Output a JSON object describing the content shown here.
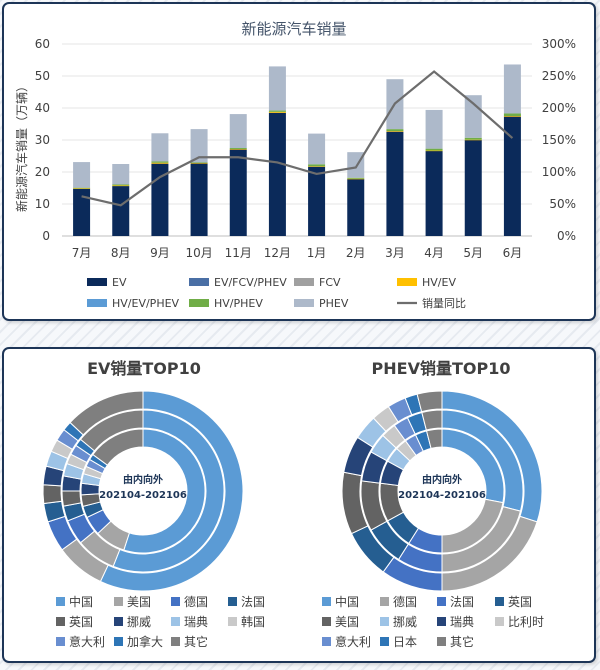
{
  "chart_data": [
    {
      "type": "bar",
      "title": "新能源汽车销量",
      "ylabel": "新能源汽车销量（万辆）",
      "ylim": [
        0,
        60
      ],
      "y2lim": [
        0,
        300
      ],
      "yticks": [
        "0",
        "10",
        "20",
        "30",
        "40",
        "50",
        "60"
      ],
      "y2ticks": [
        "0%",
        "50%",
        "100%",
        "150%",
        "200%",
        "250%",
        "300%"
      ],
      "categories": [
        "7月",
        "8月",
        "9月",
        "10月",
        "11月",
        "12月",
        "1月",
        "2月",
        "3月",
        "4月",
        "5月",
        "6月"
      ],
      "stacked": true,
      "series": [
        {
          "name": "EV",
          "color": "#0b2a5a",
          "values": [
            14.8,
            15.6,
            22.6,
            22.7,
            27.0,
            38.5,
            21.7,
            17.8,
            32.6,
            26.6,
            30.0,
            37.3
          ]
        },
        {
          "name": "EV/FCV/PHEV",
          "color": "#4a6fa5",
          "values": [
            0,
            0,
            0,
            0,
            0,
            0,
            0,
            0,
            0,
            0,
            0,
            0
          ]
        },
        {
          "name": "FCV",
          "color": "#a0a0a0",
          "values": [
            0,
            0,
            0,
            0,
            0,
            0,
            0,
            0,
            0,
            0,
            0,
            0
          ]
        },
        {
          "name": "HV/EV",
          "color": "#ffc000",
          "values": [
            0.1,
            0.2,
            0.3,
            0.1,
            0.2,
            0.3,
            0.1,
            0.1,
            0.2,
            0.1,
            0.1,
            0.2
          ]
        },
        {
          "name": "HV/EV/PHEV",
          "color": "#5b9bd5",
          "values": [
            0,
            0,
            0,
            0,
            0,
            0,
            0,
            0,
            0,
            0,
            0,
            0
          ]
        },
        {
          "name": "HV/PHEV",
          "color": "#70ad47",
          "values": [
            0.2,
            0.3,
            0.4,
            0.2,
            0.3,
            0.4,
            0.6,
            0.3,
            0.6,
            0.6,
            0.6,
            0.8
          ]
        },
        {
          "name": "PHEV",
          "color": "#adb9ca",
          "values": [
            8.0,
            6.4,
            8.8,
            10.4,
            10.6,
            13.8,
            9.6,
            8.0,
            15.6,
            12.1,
            13.3,
            15.3
          ]
        }
      ],
      "line": {
        "name": "销量同比",
        "color": "#6d6d6d",
        "axis": "right",
        "values": [
          62,
          48,
          92,
          123,
          123,
          115,
          97,
          107,
          207,
          257,
          207,
          153
        ]
      }
    },
    {
      "type": "pie",
      "title": "EV销量TOP10",
      "center_label": [
        "由内向外",
        "202104-202106"
      ],
      "rings": [
        {
          "period": "202104",
          "values": [
            55.0,
            8.0,
            5.0,
            3.0,
            3.0,
            3.0,
            2.5,
            2.0,
            2.0,
            1.5,
            15.0
          ]
        },
        {
          "period": "202105",
          "values": [
            56.0,
            8.0,
            5.0,
            3.0,
            3.0,
            3.0,
            2.5,
            2.0,
            2.0,
            1.5,
            14.0
          ]
        },
        {
          "period": "202106",
          "values": [
            57.0,
            8.0,
            5.0,
            3.0,
            3.0,
            3.0,
            2.5,
            2.0,
            2.0,
            1.5,
            13.0
          ]
        }
      ],
      "labels": [
        "中国",
        "美国",
        "德国",
        "法国",
        "英国",
        "挪威",
        "瑞典",
        "韩国",
        "意大利",
        "加拿大",
        "其它"
      ],
      "colors": [
        "#5b9bd5",
        "#a5a5a5",
        "#4472c4",
        "#255e91",
        "#636363",
        "#264478",
        "#9dc3e6",
        "#c9c9c9",
        "#698ed0",
        "#2e75b6",
        "#7f7f7f"
      ],
      "legend_order": [
        0,
        1,
        2,
        3,
        4,
        5,
        6,
        7,
        8,
        9,
        10
      ]
    },
    {
      "type": "pie",
      "title": "PHEV销量TOP10",
      "center_label": [
        "由内向外",
        "202104-202106"
      ],
      "rings": [
        {
          "period": "202104",
          "values": [
            28.0,
            22.0,
            9.0,
            8.0,
            10.0,
            6.0,
            4.0,
            3.0,
            3.0,
            3.0,
            4.0
          ]
        },
        {
          "period": "202105",
          "values": [
            29.0,
            21.0,
            9.0,
            8.0,
            10.0,
            6.0,
            4.0,
            3.0,
            3.0,
            3.0,
            4.0
          ]
        },
        {
          "period": "202106",
          "values": [
            30.0,
            20.0,
            10.0,
            8.0,
            10.0,
            6.0,
            4.0,
            3.0,
            3.0,
            2.0,
            4.0
          ]
        }
      ],
      "labels": [
        "中国",
        "德国",
        "法国",
        "英国",
        "美国",
        "瑞典",
        "挪威",
        "比利时",
        "意大利",
        "日本",
        "其它"
      ],
      "colors": [
        "#5b9bd5",
        "#a5a5a5",
        "#4472c4",
        "#255e91",
        "#636363",
        "#264478",
        "#9dc3e6",
        "#c9c9c9",
        "#698ed0",
        "#2e75b6",
        "#7f7f7f"
      ],
      "legend_order": [
        0,
        1,
        2,
        3,
        4,
        6,
        5,
        7,
        8,
        9,
        10
      ]
    }
  ]
}
